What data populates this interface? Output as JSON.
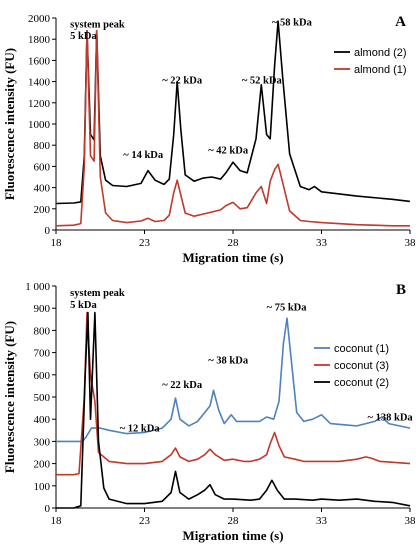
{
  "chart_data": [
    {
      "type": "line",
      "panel_label": "A",
      "xlabel": "Migration time (s)",
      "ylabel": "Fluorescence intensity (FU)",
      "xlim": [
        18,
        38
      ],
      "ylim": [
        0,
        2000
      ],
      "xticks": [
        18,
        23,
        28,
        33,
        38
      ],
      "yticks": [
        0,
        200,
        400,
        600,
        800,
        1000,
        1200,
        1400,
        1600,
        1800,
        2000
      ],
      "ytick_labels": [
        "0",
        "200",
        "400",
        "600",
        "800",
        "1000",
        "1200",
        "1400",
        "1600",
        "1800",
        "2000"
      ],
      "legend_position": "top-right",
      "annotations": [
        {
          "text": "system peak",
          "x": 18.8,
          "y": 1910
        },
        {
          "text": "5 kDa",
          "x": 18.8,
          "y": 1800
        },
        {
          "text": "~ 14 kDa",
          "x": 21.8,
          "y": 680
        },
        {
          "text": "~ 22 kDa",
          "x": 24.0,
          "y": 1380
        },
        {
          "text": "~ 42 kDa",
          "x": 26.6,
          "y": 720
        },
        {
          "text": "~ 52 kDa",
          "x": 28.5,
          "y": 1380
        },
        {
          "text": "~ 58 kDa",
          "x": 30.2,
          "y": 1930
        }
      ],
      "series": [
        {
          "name": "almond (2)",
          "color": "#000000",
          "points": [
            [
              18,
              250
            ],
            [
              19,
              255
            ],
            [
              19.4,
              265
            ],
            [
              19.6,
              700
            ],
            [
              19.75,
              1880
            ],
            [
              19.95,
              900
            ],
            [
              20.15,
              850
            ],
            [
              20.3,
              1880
            ],
            [
              20.5,
              700
            ],
            [
              20.8,
              470
            ],
            [
              21.2,
              420
            ],
            [
              22,
              410
            ],
            [
              22.8,
              440
            ],
            [
              23.2,
              560
            ],
            [
              23.6,
              470
            ],
            [
              24.1,
              430
            ],
            [
              24.4,
              480
            ],
            [
              24.65,
              900
            ],
            [
              24.85,
              1400
            ],
            [
              25.05,
              950
            ],
            [
              25.3,
              520
            ],
            [
              25.8,
              460
            ],
            [
              26.3,
              490
            ],
            [
              26.8,
              500
            ],
            [
              27.3,
              480
            ],
            [
              27.6,
              540
            ],
            [
              28,
              640
            ],
            [
              28.4,
              560
            ],
            [
              28.8,
              540
            ],
            [
              29.3,
              860
            ],
            [
              29.6,
              1370
            ],
            [
              29.9,
              900
            ],
            [
              30.1,
              860
            ],
            [
              30.35,
              1550
            ],
            [
              30.55,
              1970
            ],
            [
              30.8,
              1450
            ],
            [
              31.2,
              720
            ],
            [
              31.8,
              410
            ],
            [
              32.3,
              380
            ],
            [
              32.6,
              410
            ],
            [
              33,
              360
            ],
            [
              35,
              320
            ],
            [
              37,
              290
            ],
            [
              38,
              270
            ]
          ]
        },
        {
          "name": "almond (1)",
          "color": "#C0392B",
          "points": [
            [
              18,
              40
            ],
            [
              19,
              45
            ],
            [
              19.4,
              60
            ],
            [
              19.6,
              600
            ],
            [
              19.75,
              1880
            ],
            [
              19.95,
              700
            ],
            [
              20.15,
              650
            ],
            [
              20.3,
              1880
            ],
            [
              20.5,
              500
            ],
            [
              20.8,
              160
            ],
            [
              21.2,
              90
            ],
            [
              22,
              70
            ],
            [
              22.8,
              85
            ],
            [
              23.2,
              110
            ],
            [
              23.6,
              80
            ],
            [
              24.1,
              90
            ],
            [
              24.4,
              140
            ],
            [
              24.65,
              350
            ],
            [
              24.85,
              470
            ],
            [
              25.05,
              330
            ],
            [
              25.3,
              160
            ],
            [
              25.8,
              130
            ],
            [
              26.3,
              150
            ],
            [
              26.8,
              170
            ],
            [
              27.3,
              190
            ],
            [
              27.6,
              230
            ],
            [
              28,
              260
            ],
            [
              28.4,
              200
            ],
            [
              28.8,
              210
            ],
            [
              29.3,
              350
            ],
            [
              29.6,
              410
            ],
            [
              29.9,
              250
            ],
            [
              30.1,
              460
            ],
            [
              30.35,
              570
            ],
            [
              30.55,
              620
            ],
            [
              30.8,
              450
            ],
            [
              31.2,
              180
            ],
            [
              31.8,
              90
            ],
            [
              32.3,
              80
            ],
            [
              33,
              70
            ],
            [
              35,
              50
            ],
            [
              37,
              40
            ],
            [
              38,
              40
            ]
          ]
        }
      ]
    },
    {
      "type": "line",
      "panel_label": "B",
      "xlabel": "Migration time (s)",
      "ylabel": "Fluorescence intensity (FU)",
      "xlim": [
        18,
        38
      ],
      "ylim": [
        0,
        1000
      ],
      "xticks": [
        18,
        23,
        28,
        33,
        38
      ],
      "yticks": [
        0,
        100,
        200,
        300,
        400,
        500,
        600,
        700,
        800,
        900,
        1000
      ],
      "ytick_labels": [
        "0",
        "100",
        "200",
        "300",
        "400",
        "500",
        "600",
        "700",
        "800",
        "900",
        "1 000"
      ],
      "legend_position": "center-right",
      "annotations": [
        {
          "text": "system peak",
          "x": 18.8,
          "y": 955
        },
        {
          "text": "5 kDa",
          "x": 18.8,
          "y": 900
        },
        {
          "text": "~ 12 kDa",
          "x": 21.6,
          "y": 345
        },
        {
          "text": "~ 22 kDa",
          "x": 24.0,
          "y": 540
        },
        {
          "text": "~ 38 kDa",
          "x": 26.6,
          "y": 650
        },
        {
          "text": "~ 75 kDa",
          "x": 29.9,
          "y": 890
        },
        {
          "text": "~ 138 kDa",
          "x": 35.6,
          "y": 395
        }
      ],
      "series": [
        {
          "name": "coconut (1)",
          "color": "#4F81BD",
          "points": [
            [
              18,
              300
            ],
            [
              19,
              300
            ],
            [
              19.5,
              300
            ],
            [
              19.7,
              320
            ],
            [
              20,
              360
            ],
            [
              20.5,
              360
            ],
            [
              21,
              350
            ],
            [
              22,
              335
            ],
            [
              23,
              340
            ],
            [
              24,
              360
            ],
            [
              24.5,
              400
            ],
            [
              24.75,
              495
            ],
            [
              25,
              400
            ],
            [
              25.5,
              370
            ],
            [
              26,
              390
            ],
            [
              26.4,
              430
            ],
            [
              26.7,
              460
            ],
            [
              26.9,
              530
            ],
            [
              27.2,
              440
            ],
            [
              27.5,
              380
            ],
            [
              27.9,
              420
            ],
            [
              28.2,
              390
            ],
            [
              28.8,
              390
            ],
            [
              29.5,
              390
            ],
            [
              29.9,
              410
            ],
            [
              30.3,
              400
            ],
            [
              30.6,
              480
            ],
            [
              30.85,
              740
            ],
            [
              31.05,
              855
            ],
            [
              31.25,
              700
            ],
            [
              31.6,
              430
            ],
            [
              32,
              390
            ],
            [
              32.5,
              400
            ],
            [
              33,
              420
            ],
            [
              33.5,
              380
            ],
            [
              35,
              370
            ],
            [
              36,
              390
            ],
            [
              36.4,
              410
            ],
            [
              36.8,
              380
            ],
            [
              38,
              360
            ]
          ]
        },
        {
          "name": "coconut (3)",
          "color": "#C0392B",
          "points": [
            [
              18,
              150
            ],
            [
              19,
              150
            ],
            [
              19.3,
              155
            ],
            [
              19.6,
              500
            ],
            [
              19.75,
              880
            ],
            [
              19.95,
              600
            ],
            [
              20.2,
              480
            ],
            [
              20.4,
              250
            ],
            [
              20.7,
              230
            ],
            [
              21,
              210
            ],
            [
              22,
              200
            ],
            [
              23,
              200
            ],
            [
              24,
              210
            ],
            [
              24.5,
              240
            ],
            [
              24.75,
              270
            ],
            [
              25,
              230
            ],
            [
              25.5,
              210
            ],
            [
              26,
              220
            ],
            [
              26.4,
              240
            ],
            [
              26.7,
              265
            ],
            [
              27,
              240
            ],
            [
              27.5,
              215
            ],
            [
              28,
              220
            ],
            [
              28.6,
              210
            ],
            [
              29,
              210
            ],
            [
              29.5,
              220
            ],
            [
              29.9,
              240
            ],
            [
              30.1,
              290
            ],
            [
              30.35,
              340
            ],
            [
              30.6,
              280
            ],
            [
              30.9,
              230
            ],
            [
              31.5,
              220
            ],
            [
              32,
              210
            ],
            [
              33,
              210
            ],
            [
              34,
              210
            ],
            [
              35,
              220
            ],
            [
              35.5,
              230
            ],
            [
              35.8,
              225
            ],
            [
              36.3,
              210
            ],
            [
              38,
              200
            ]
          ]
        },
        {
          "name": "coconut (2)",
          "color": "#000000",
          "points": [
            [
              18,
              0
            ],
            [
              19,
              0
            ],
            [
              19.4,
              10
            ],
            [
              19.65,
              600
            ],
            [
              19.8,
              880
            ],
            [
              19.95,
              400
            ],
            [
              20.2,
              880
            ],
            [
              20.4,
              300
            ],
            [
              20.7,
              90
            ],
            [
              21,
              40
            ],
            [
              22,
              20
            ],
            [
              23,
              20
            ],
            [
              24,
              30
            ],
            [
              24.5,
              70
            ],
            [
              24.75,
              165
            ],
            [
              25,
              70
            ],
            [
              25.5,
              40
            ],
            [
              26,
              60
            ],
            [
              26.4,
              80
            ],
            [
              26.7,
              105
            ],
            [
              27,
              60
            ],
            [
              27.5,
              40
            ],
            [
              28,
              40
            ],
            [
              29,
              35
            ],
            [
              29.5,
              40
            ],
            [
              29.9,
              80
            ],
            [
              30.2,
              125
            ],
            [
              30.5,
              80
            ],
            [
              30.9,
              40
            ],
            [
              31.5,
              40
            ],
            [
              32.5,
              35
            ],
            [
              33,
              40
            ],
            [
              34,
              35
            ],
            [
              35,
              40
            ],
            [
              36,
              30
            ],
            [
              37,
              25
            ],
            [
              38,
              10
            ]
          ]
        }
      ]
    }
  ]
}
